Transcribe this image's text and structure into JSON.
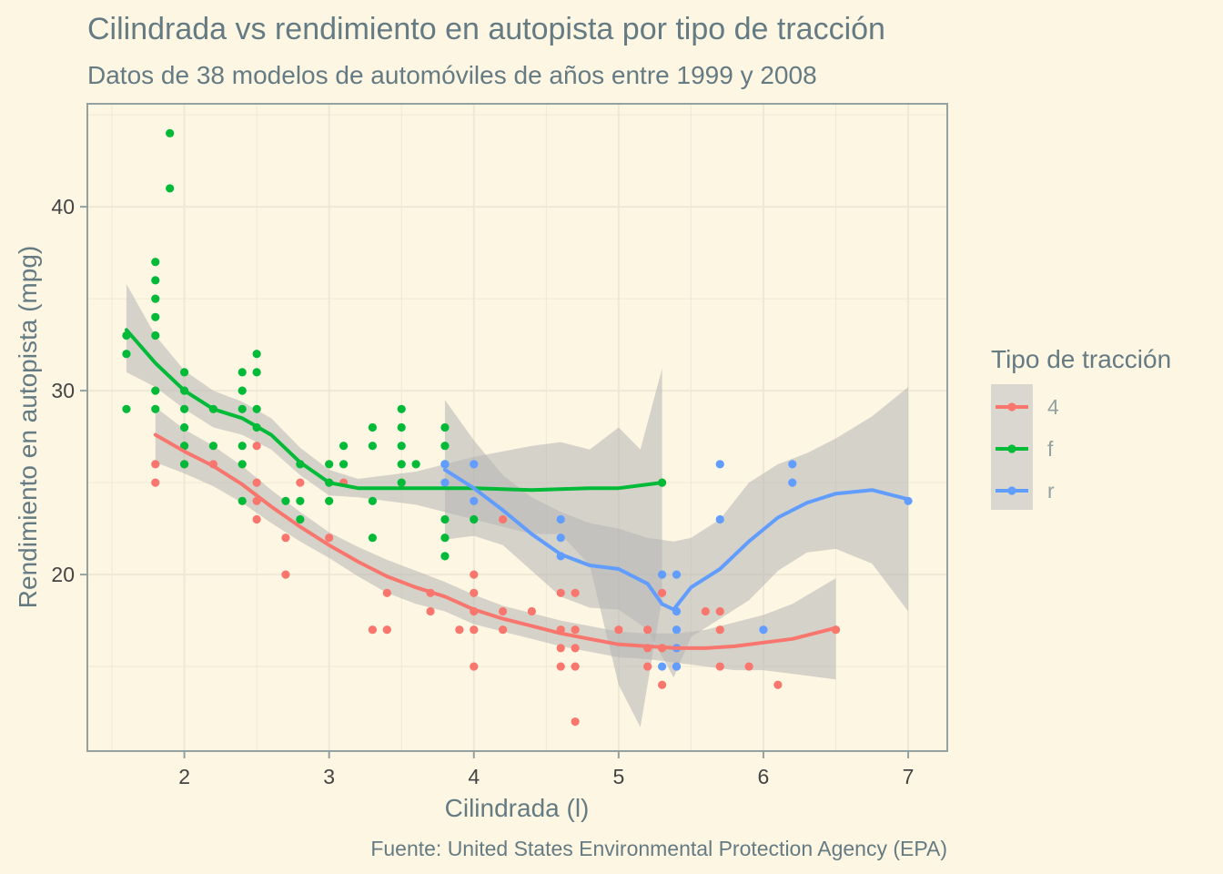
{
  "chart_data": {
    "type": "scatter",
    "title": "Cilindrada vs rendimiento en autopista por tipo de tracción",
    "subtitle": "Datos de 38 modelos de automóviles de años entre 1999 y 2008",
    "xlabel": "Cilindrada (l)",
    "ylabel": "Rendimiento en autopista (mpg)",
    "caption": "Fuente: United States Environmental Protection Agency (EPA)",
    "xlim": [
      1.33,
      7.27
    ],
    "ylim": [
      10.4,
      45.6
    ],
    "xticks": [
      "2",
      "3",
      "4",
      "5",
      "6",
      "7"
    ],
    "yticks": [
      "20",
      "30",
      "40"
    ],
    "grid": true,
    "legend": {
      "title": "Tipo de tracción",
      "position": "right",
      "entries": [
        "4",
        "f",
        "r"
      ]
    },
    "colors": {
      "4": "#F8766D",
      "f": "#00BA38",
      "r": "#619CFF",
      "ribbon": "#B4B4B4",
      "background": "#FDF6E3",
      "panel_border": "#93A1A1",
      "grid": "#EEE8D5"
    },
    "series": [
      {
        "name": "4",
        "points": [
          [
            1.8,
            26
          ],
          [
            1.8,
            25
          ],
          [
            2.0,
            26
          ],
          [
            2.2,
            26
          ],
          [
            2.5,
            27
          ],
          [
            2.5,
            25
          ],
          [
            2.5,
            24
          ],
          [
            2.5,
            23
          ],
          [
            2.7,
            22
          ],
          [
            2.7,
            20
          ],
          [
            2.8,
            25
          ],
          [
            3.0,
            22
          ],
          [
            3.1,
            25
          ],
          [
            3.3,
            17
          ],
          [
            3.4,
            19
          ],
          [
            3.4,
            17
          ],
          [
            3.7,
            19
          ],
          [
            3.7,
            18
          ],
          [
            3.9,
            17
          ],
          [
            4.0,
            20
          ],
          [
            4.0,
            19
          ],
          [
            4.0,
            18
          ],
          [
            4.0,
            17
          ],
          [
            4.0,
            15
          ],
          [
            4.2,
            23
          ],
          [
            4.2,
            18
          ],
          [
            4.2,
            17
          ],
          [
            4.4,
            18
          ],
          [
            4.6,
            19
          ],
          [
            4.6,
            17
          ],
          [
            4.6,
            16
          ],
          [
            4.6,
            15
          ],
          [
            4.7,
            19
          ],
          [
            4.7,
            17
          ],
          [
            4.7,
            16
          ],
          [
            4.7,
            15
          ],
          [
            4.7,
            12
          ],
          [
            5.0,
            17
          ],
          [
            5.2,
            17
          ],
          [
            5.2,
            16
          ],
          [
            5.2,
            15
          ],
          [
            5.3,
            19
          ],
          [
            5.3,
            16
          ],
          [
            5.3,
            14
          ],
          [
            5.4,
            16
          ],
          [
            5.4,
            15
          ],
          [
            5.6,
            18
          ],
          [
            5.7,
            18
          ],
          [
            5.7,
            17
          ],
          [
            5.7,
            15
          ],
          [
            5.9,
            15
          ],
          [
            6.1,
            14
          ],
          [
            6.5,
            17
          ]
        ],
        "smooth": [
          [
            1.8,
            27.6
          ],
          [
            2.0,
            26.7
          ],
          [
            2.2,
            25.9
          ],
          [
            2.4,
            24.9
          ],
          [
            2.6,
            23.7
          ],
          [
            2.8,
            22.6
          ],
          [
            3.0,
            21.6
          ],
          [
            3.2,
            20.7
          ],
          [
            3.4,
            19.9
          ],
          [
            3.6,
            19.3
          ],
          [
            3.8,
            18.8
          ],
          [
            4.0,
            18.1
          ],
          [
            4.2,
            17.6
          ],
          [
            4.4,
            17.2
          ],
          [
            4.6,
            16.8
          ],
          [
            4.8,
            16.5
          ],
          [
            5.0,
            16.2
          ],
          [
            5.2,
            16.1
          ],
          [
            5.4,
            16.0
          ],
          [
            5.6,
            16.0
          ],
          [
            5.8,
            16.1
          ],
          [
            6.0,
            16.3
          ],
          [
            6.2,
            16.5
          ],
          [
            6.5,
            17.1
          ]
        ],
        "ribbon_upper": [
          [
            1.8,
            29.1
          ],
          [
            2.0,
            27.9
          ],
          [
            2.2,
            27.0
          ],
          [
            2.4,
            25.9
          ],
          [
            2.6,
            24.6
          ],
          [
            2.8,
            23.4
          ],
          [
            3.0,
            22.3
          ],
          [
            3.2,
            21.5
          ],
          [
            3.4,
            20.8
          ],
          [
            3.6,
            20.2
          ],
          [
            3.8,
            19.6
          ],
          [
            4.0,
            18.9
          ],
          [
            4.2,
            18.3
          ],
          [
            4.4,
            17.9
          ],
          [
            4.6,
            17.5
          ],
          [
            4.8,
            17.2
          ],
          [
            5.0,
            16.9
          ],
          [
            5.2,
            16.8
          ],
          [
            5.4,
            16.8
          ],
          [
            5.6,
            17.0
          ],
          [
            5.8,
            17.4
          ],
          [
            6.0,
            17.8
          ],
          [
            6.2,
            18.4
          ],
          [
            6.5,
            19.8
          ]
        ],
        "ribbon_lower": [
          [
            1.8,
            26.1
          ],
          [
            2.0,
            25.5
          ],
          [
            2.2,
            24.8
          ],
          [
            2.4,
            23.9
          ],
          [
            2.6,
            22.8
          ],
          [
            2.8,
            21.8
          ],
          [
            3.0,
            20.9
          ],
          [
            3.2,
            19.9
          ],
          [
            3.4,
            19.0
          ],
          [
            3.6,
            18.4
          ],
          [
            3.8,
            18.0
          ],
          [
            4.0,
            17.3
          ],
          [
            4.2,
            16.9
          ],
          [
            4.4,
            16.5
          ],
          [
            4.6,
            16.1
          ],
          [
            4.8,
            15.8
          ],
          [
            5.0,
            15.5
          ],
          [
            5.2,
            15.4
          ],
          [
            5.4,
            15.2
          ],
          [
            5.6,
            15.0
          ],
          [
            5.8,
            14.8
          ],
          [
            6.0,
            14.8
          ],
          [
            6.2,
            14.6
          ],
          [
            6.5,
            14.3
          ]
        ]
      },
      {
        "name": "f",
        "points": [
          [
            1.6,
            33
          ],
          [
            1.6,
            32
          ],
          [
            1.6,
            29
          ],
          [
            1.8,
            37
          ],
          [
            1.8,
            36
          ],
          [
            1.8,
            35
          ],
          [
            1.8,
            34
          ],
          [
            1.8,
            33
          ],
          [
            1.8,
            30
          ],
          [
            1.8,
            29
          ],
          [
            1.9,
            44
          ],
          [
            1.9,
            41
          ],
          [
            2.0,
            31
          ],
          [
            2.0,
            30
          ],
          [
            2.0,
            29
          ],
          [
            2.0,
            28
          ],
          [
            2.0,
            27
          ],
          [
            2.0,
            26
          ],
          [
            2.2,
            29
          ],
          [
            2.2,
            27
          ],
          [
            2.4,
            31
          ],
          [
            2.4,
            30
          ],
          [
            2.4,
            29
          ],
          [
            2.4,
            27
          ],
          [
            2.4,
            26
          ],
          [
            2.4,
            24
          ],
          [
            2.5,
            32
          ],
          [
            2.5,
            31
          ],
          [
            2.5,
            29
          ],
          [
            2.5,
            28
          ],
          [
            2.7,
            24
          ],
          [
            2.8,
            26
          ],
          [
            2.8,
            24
          ],
          [
            2.8,
            23
          ],
          [
            3.0,
            26
          ],
          [
            3.0,
            25
          ],
          [
            3.0,
            24
          ],
          [
            3.1,
            27
          ],
          [
            3.1,
            26
          ],
          [
            3.3,
            28
          ],
          [
            3.3,
            27
          ],
          [
            3.3,
            24
          ],
          [
            3.3,
            22
          ],
          [
            3.5,
            29
          ],
          [
            3.5,
            28
          ],
          [
            3.5,
            27
          ],
          [
            3.5,
            26
          ],
          [
            3.5,
            25
          ],
          [
            3.6,
            26
          ],
          [
            3.8,
            28
          ],
          [
            3.8,
            27
          ],
          [
            3.8,
            26
          ],
          [
            3.8,
            23
          ],
          [
            3.8,
            22
          ],
          [
            3.8,
            21
          ],
          [
            4.0,
            23
          ],
          [
            5.3,
            25
          ]
        ],
        "smooth": [
          [
            1.6,
            33.3
          ],
          [
            1.8,
            31.5
          ],
          [
            2.0,
            30.0
          ],
          [
            2.2,
            29.0
          ],
          [
            2.4,
            28.5
          ],
          [
            2.6,
            27.6
          ],
          [
            2.8,
            26.1
          ],
          [
            3.0,
            25.0
          ],
          [
            3.2,
            24.7
          ],
          [
            3.6,
            24.7
          ],
          [
            4.0,
            24.7
          ],
          [
            4.4,
            24.6
          ],
          [
            4.8,
            24.7
          ],
          [
            5.0,
            24.7
          ],
          [
            5.3,
            25.0
          ]
        ],
        "ribbon_upper": [
          [
            1.6,
            35.8
          ],
          [
            1.8,
            33.0
          ],
          [
            2.0,
            31.1
          ],
          [
            2.2,
            30.0
          ],
          [
            2.4,
            29.4
          ],
          [
            2.6,
            28.5
          ],
          [
            2.8,
            26.9
          ],
          [
            3.0,
            25.7
          ],
          [
            3.2,
            25.2
          ],
          [
            3.6,
            25.6
          ],
          [
            4.0,
            26.4
          ],
          [
            4.4,
            27.0
          ],
          [
            4.6,
            27.2
          ],
          [
            4.8,
            26.8
          ],
          [
            5.0,
            28.0
          ],
          [
            5.15,
            26.8
          ],
          [
            5.3,
            31.2
          ]
        ],
        "ribbon_lower": [
          [
            1.6,
            31.0
          ],
          [
            1.8,
            30.2
          ],
          [
            2.0,
            29.0
          ],
          [
            2.2,
            28.0
          ],
          [
            2.4,
            27.6
          ],
          [
            2.6,
            26.8
          ],
          [
            2.8,
            25.4
          ],
          [
            3.0,
            24.3
          ],
          [
            3.2,
            24.2
          ],
          [
            3.6,
            23.8
          ],
          [
            4.0,
            23.0
          ],
          [
            4.4,
            22.2
          ],
          [
            4.6,
            22.2
          ],
          [
            4.8,
            20.5
          ],
          [
            5.0,
            14.0
          ],
          [
            5.15,
            11.7
          ],
          [
            5.3,
            18.7
          ]
        ]
      },
      {
        "name": "r",
        "points": [
          [
            3.8,
            26
          ],
          [
            3.8,
            25
          ],
          [
            4.0,
            26
          ],
          [
            4.0,
            24
          ],
          [
            4.6,
            23
          ],
          [
            4.6,
            22
          ],
          [
            4.6,
            21
          ],
          [
            5.3,
            20
          ],
          [
            5.3,
            15
          ],
          [
            5.4,
            20
          ],
          [
            5.4,
            18
          ],
          [
            5.4,
            17
          ],
          [
            5.4,
            16
          ],
          [
            5.4,
            15
          ],
          [
            5.7,
            26
          ],
          [
            5.7,
            23
          ],
          [
            6.0,
            17
          ],
          [
            6.2,
            26
          ],
          [
            6.2,
            25
          ],
          [
            7.0,
            24
          ]
        ],
        "smooth": [
          [
            3.8,
            25.7
          ],
          [
            4.0,
            24.7
          ],
          [
            4.2,
            23.5
          ],
          [
            4.4,
            22.2
          ],
          [
            4.6,
            21.1
          ],
          [
            4.8,
            20.5
          ],
          [
            5.0,
            20.3
          ],
          [
            5.2,
            19.5
          ],
          [
            5.3,
            18.4
          ],
          [
            5.38,
            18.1
          ],
          [
            5.5,
            19.3
          ],
          [
            5.7,
            20.3
          ],
          [
            5.9,
            21.8
          ],
          [
            6.1,
            23.1
          ],
          [
            6.3,
            23.9
          ],
          [
            6.5,
            24.4
          ],
          [
            6.75,
            24.6
          ],
          [
            7.0,
            24.1
          ]
        ],
        "ribbon_upper": [
          [
            3.8,
            29.5
          ],
          [
            4.0,
            27.3
          ],
          [
            4.2,
            25.4
          ],
          [
            4.4,
            24.2
          ],
          [
            4.6,
            23.4
          ],
          [
            4.8,
            22.8
          ],
          [
            5.0,
            22.5
          ],
          [
            5.2,
            22.0
          ],
          [
            5.38,
            21.8
          ],
          [
            5.5,
            22.0
          ],
          [
            5.7,
            23.0
          ],
          [
            5.9,
            25.0
          ],
          [
            6.1,
            26.0
          ],
          [
            6.3,
            26.6
          ],
          [
            6.5,
            27.4
          ],
          [
            6.75,
            28.6
          ],
          [
            7.0,
            30.2
          ]
        ],
        "ribbon_lower": [
          [
            3.8,
            21.9
          ],
          [
            4.0,
            22.1
          ],
          [
            4.2,
            21.6
          ],
          [
            4.4,
            20.2
          ],
          [
            4.6,
            18.8
          ],
          [
            4.8,
            18.2
          ],
          [
            5.0,
            18.1
          ],
          [
            5.2,
            17.0
          ],
          [
            5.38,
            14.4
          ],
          [
            5.5,
            16.6
          ],
          [
            5.7,
            17.6
          ],
          [
            5.9,
            18.6
          ],
          [
            6.1,
            20.2
          ],
          [
            6.3,
            21.2
          ],
          [
            6.5,
            21.4
          ],
          [
            6.75,
            20.6
          ],
          [
            7.0,
            18.0
          ]
        ]
      }
    ]
  }
}
